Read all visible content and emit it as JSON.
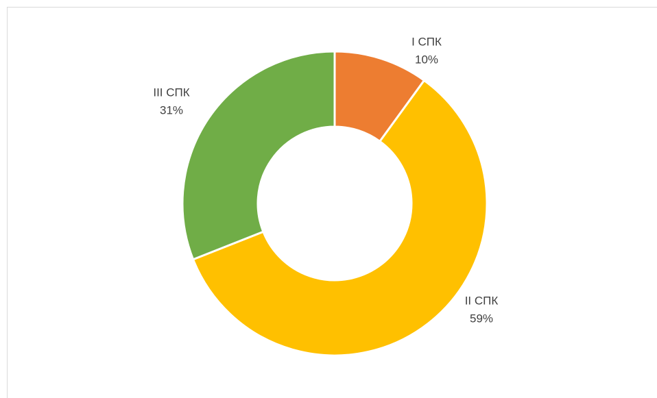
{
  "chart_data": {
    "type": "donut",
    "categories": [
      "I СПК",
      "II СПК",
      "III СПК"
    ],
    "values": [
      10,
      59,
      31
    ],
    "value_labels": [
      "10%",
      "59%",
      "31%"
    ],
    "colors": [
      "#ED7D31",
      "#FFC000",
      "#70AD47"
    ]
  }
}
